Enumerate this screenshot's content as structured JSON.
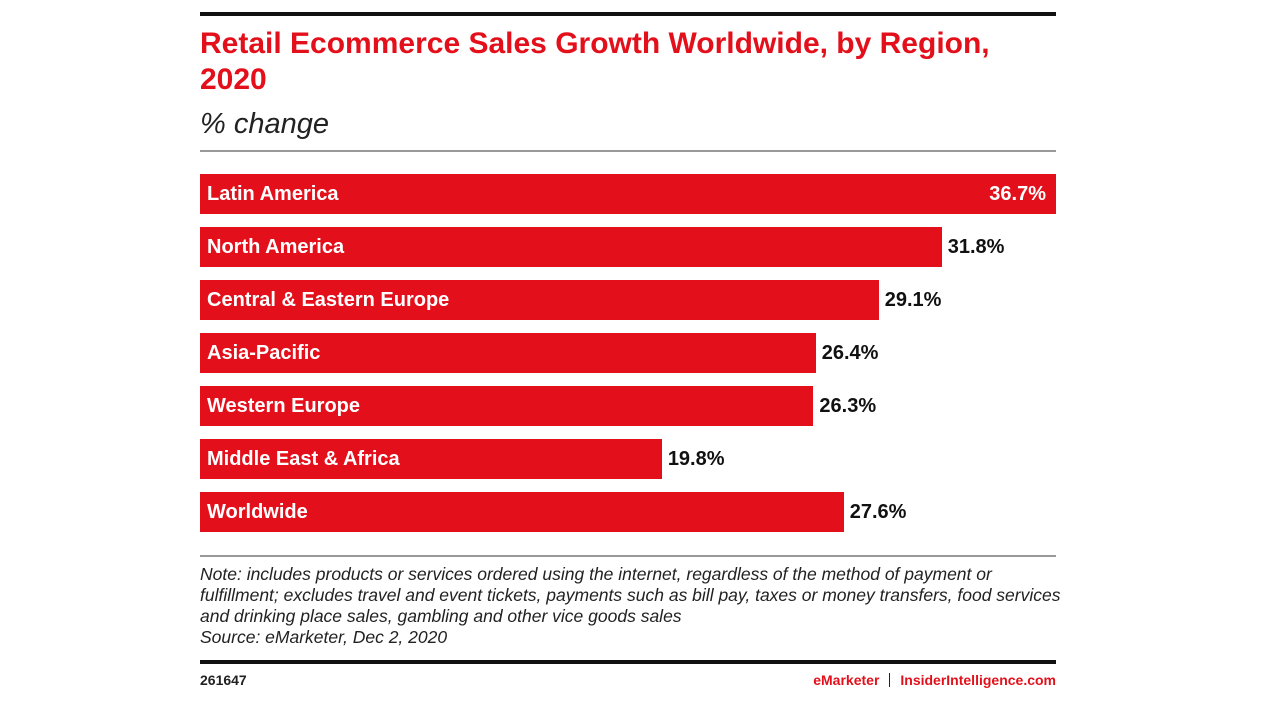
{
  "chart_data": {
    "type": "bar",
    "title": "Retail Ecommerce Sales Growth Worldwide, by Region, 2020",
    "subtitle": "% change",
    "categories": [
      "Latin America",
      "North America",
      "Central & Eastern Europe",
      "Asia-Pacific",
      "Western Europe",
      "Middle East & Africa",
      "Worldwide"
    ],
    "values": [
      36.7,
      31.8,
      29.1,
      26.4,
      26.3,
      19.8,
      27.6
    ],
    "value_labels": [
      "36.7%",
      "31.8%",
      "29.1%",
      "26.4%",
      "26.3%",
      "19.8%",
      "27.6%"
    ],
    "color": "#e3101b",
    "note": "Note: includes products or services ordered using the internet, regardless of the method of payment or fulfillment; excludes travel and event tickets, payments such as bill pay, taxes or money transfers, food services and drinking place sales, gambling and other vice goods sales",
    "source": "Source: eMarketer, Dec 2, 2020",
    "chart_id": "261647",
    "brand": "eMarketer",
    "brand_site": "InsiderIntelligence.com"
  }
}
